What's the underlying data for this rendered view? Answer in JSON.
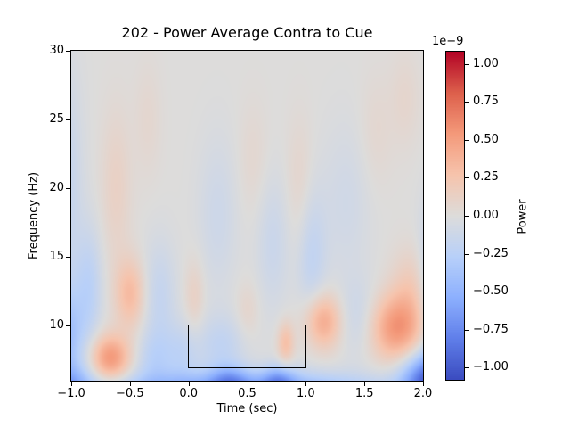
{
  "figure": {
    "title": "202 - Power Average Contra to Cue",
    "xlabel": "Time (sec)",
    "ylabel": "Frequency (Hz)",
    "colorbar": {
      "offset_label": "1e−9",
      "label": "Power"
    }
  },
  "chart_data": {
    "type": "heatmap",
    "title": "202 - Power Average Contra to Cue",
    "xlabel": "Time (sec)",
    "ylabel": "Frequency (Hz)",
    "x_range": [
      -1.0,
      2.0
    ],
    "y_range": [
      6.0,
      30.0
    ],
    "grid": false,
    "colormap": "coolwarm",
    "value_scale_factor": "1e-9",
    "value_range": [
      -1.08,
      1.08
    ],
    "colorbar_label": "Power",
    "colorbar_offset_label": "1e−9",
    "xticks": {
      "values": [
        -1.0,
        -0.5,
        0.0,
        0.5,
        1.0,
        1.5,
        2.0
      ],
      "labels": [
        "−1.0",
        "−0.5",
        "0.0",
        "0.5",
        "1.0",
        "1.5",
        "2.0"
      ]
    },
    "yticks": {
      "values": [
        30,
        25,
        20,
        15,
        10
      ],
      "labels": [
        "30",
        "25",
        "20",
        "15",
        "10"
      ]
    },
    "colorbar_ticks": {
      "values": [
        1.0,
        0.75,
        0.5,
        0.25,
        0.0,
        -0.25,
        -0.5,
        -0.75,
        -1.0
      ],
      "labels": [
        "1.00",
        "0.75",
        "0.50",
        "0.25",
        "0.00",
        "−0.25",
        "−0.50",
        "−0.75",
        "−1.00"
      ]
    },
    "highlight_rect": {
      "t0": 0.0,
      "t1": 1.0,
      "f0": 7.0,
      "f1": 10.0
    },
    "blobs_comment": "Gaussian features (time sec, freq Hz, amplitude in 1e-9, sigma_t, sigma_f) approximating the time-frequency power map",
    "blobs": [
      {
        "t": -1.08,
        "f": 9.0,
        "a": -0.45,
        "st": 0.13,
        "sf": 2.6
      },
      {
        "t": -1.05,
        "f": 20.0,
        "a": -0.18,
        "st": 0.1,
        "sf": 6.0
      },
      {
        "t": -1.02,
        "f": 5.5,
        "a": -0.4,
        "st": 0.15,
        "sf": 1.1
      },
      {
        "t": -0.85,
        "f": 13.0,
        "a": -0.22,
        "st": 0.08,
        "sf": 3.0
      },
      {
        "t": -0.67,
        "f": 7.6,
        "a": 0.55,
        "st": 0.12,
        "sf": 1.2
      },
      {
        "t": -0.5,
        "f": 12.3,
        "a": 0.33,
        "st": 0.09,
        "sf": 1.8
      },
      {
        "t": -0.62,
        "f": 20.0,
        "a": 0.13,
        "st": 0.09,
        "sf": 4.0
      },
      {
        "t": -0.35,
        "f": 25.0,
        "a": 0.07,
        "st": 0.08,
        "sf": 3.0
      },
      {
        "t": -0.3,
        "f": 7.5,
        "a": -0.2,
        "st": 0.12,
        "sf": 1.5
      },
      {
        "t": -0.25,
        "f": 12.0,
        "a": -0.18,
        "st": 0.1,
        "sf": 3.0
      },
      {
        "t": -0.05,
        "f": 8.0,
        "a": -0.18,
        "st": 0.1,
        "sf": 1.6
      },
      {
        "t": 0.45,
        "f": 5.0,
        "a": -0.75,
        "st": 0.85,
        "sf": 1.0
      },
      {
        "t": 0.28,
        "f": 8.5,
        "a": -0.2,
        "st": 0.15,
        "sf": 1.6
      },
      {
        "t": 0.35,
        "f": 6.0,
        "a": -0.35,
        "st": 0.12,
        "sf": 0.8
      },
      {
        "t": 0.77,
        "f": 6.0,
        "a": -0.4,
        "st": 0.1,
        "sf": 0.8
      },
      {
        "t": 0.83,
        "f": 8.7,
        "a": 0.3,
        "st": 0.05,
        "sf": 1.1
      },
      {
        "t": 0.05,
        "f": 12.0,
        "a": 0.14,
        "st": 0.06,
        "sf": 2.0
      },
      {
        "t": 0.5,
        "f": 11.0,
        "a": 0.1,
        "st": 0.07,
        "sf": 1.5
      },
      {
        "t": 0.25,
        "f": 18.0,
        "a": -0.12,
        "st": 0.12,
        "sf": 4.0
      },
      {
        "t": 0.72,
        "f": 16.0,
        "a": -0.14,
        "st": 0.1,
        "sf": 3.5
      },
      {
        "t": 0.55,
        "f": 22.0,
        "a": 0.07,
        "st": 0.09,
        "sf": 3.0
      },
      {
        "t": 0.95,
        "f": 20.0,
        "a": 0.1,
        "st": 0.08,
        "sf": 3.5
      },
      {
        "t": 1.05,
        "f": 15.0,
        "a": -0.2,
        "st": 0.09,
        "sf": 3.5
      },
      {
        "t": 1.15,
        "f": 10.3,
        "a": 0.45,
        "st": 0.11,
        "sf": 1.4
      },
      {
        "t": 1.45,
        "f": 10.5,
        "a": -0.15,
        "st": 0.12,
        "sf": 2.0
      },
      {
        "t": 1.35,
        "f": 19.0,
        "a": -0.1,
        "st": 0.15,
        "sf": 4.0
      },
      {
        "t": 1.78,
        "f": 9.8,
        "a": 0.55,
        "st": 0.16,
        "sf": 1.7
      },
      {
        "t": 1.9,
        "f": 12.8,
        "a": 0.18,
        "st": 0.12,
        "sf": 2.0
      },
      {
        "t": 1.6,
        "f": 24.0,
        "a": 0.07,
        "st": 0.1,
        "sf": 3.0
      },
      {
        "t": 1.85,
        "f": 26.5,
        "a": 0.08,
        "st": 0.09,
        "sf": 2.5
      },
      {
        "t": 2.05,
        "f": 6.0,
        "a": -0.9,
        "st": 0.16,
        "sf": 1.4
      },
      {
        "t": 2.08,
        "f": 13.0,
        "a": -0.25,
        "st": 0.08,
        "sf": 4.0
      }
    ]
  }
}
